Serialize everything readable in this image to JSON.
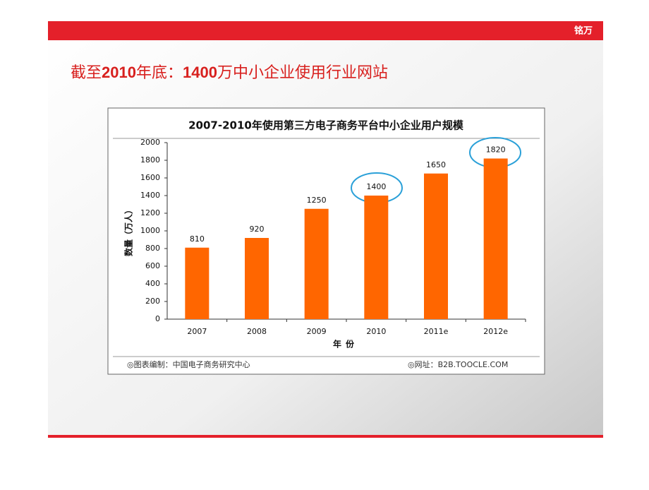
{
  "slide_title": [
    "截至",
    "2010",
    "年底：",
    "1400",
    "万中小企业使用行业网站"
  ],
  "logo": "铭万",
  "chart_data": {
    "type": "bar",
    "title": "2007-2010年使用第三方电子商务平台中小企业用户规模",
    "categories": [
      "2007",
      "2008",
      "2009",
      "2010",
      "2011e",
      "2012e"
    ],
    "values": [
      810,
      920,
      1250,
      1400,
      1650,
      1820
    ],
    "color": "#ff6600",
    "ylim": [
      0,
      2000
    ],
    "yticks": [
      0,
      200,
      400,
      600,
      800,
      1000,
      1200,
      1400,
      1600,
      1800,
      2000
    ],
    "ylabel": "数量（万人）",
    "xlabel": "年份",
    "source_left": "◎图表编制：中国电子商务研究中心",
    "source_right": "◎网址：B2B.TOOCLE.COM"
  }
}
